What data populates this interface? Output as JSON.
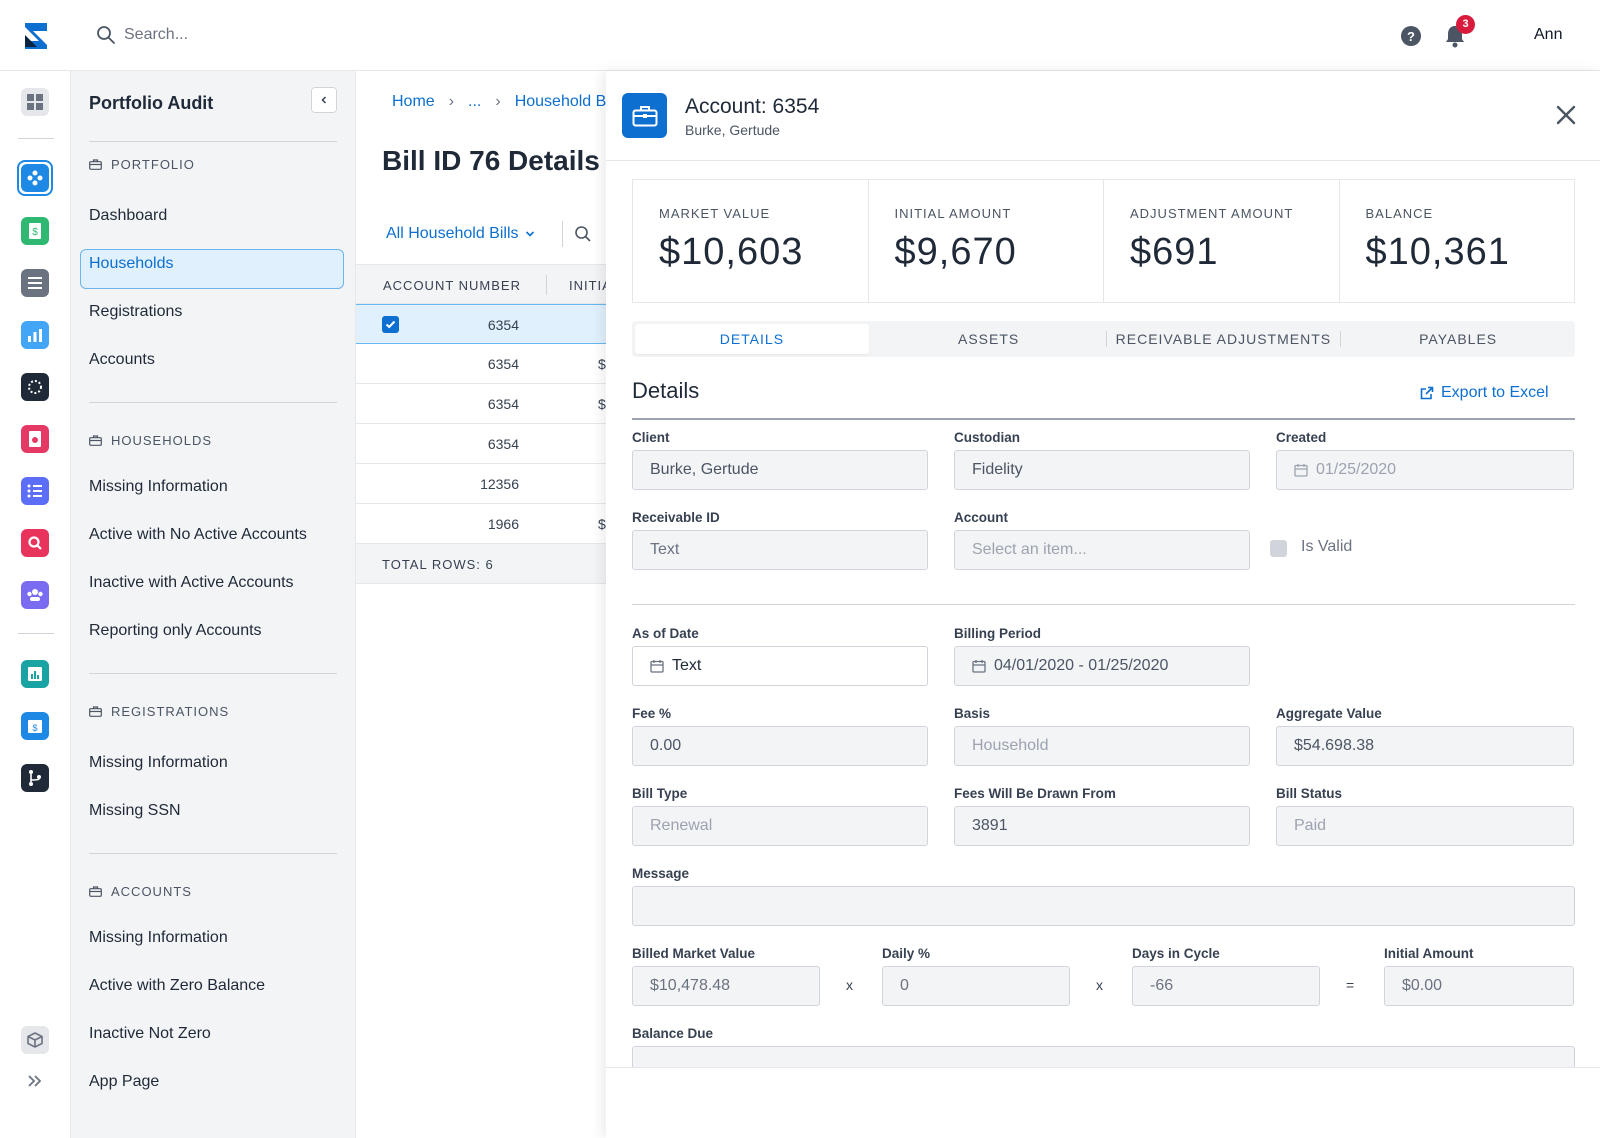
{
  "topbar": {
    "search_placeholder": "Search...",
    "notification_count": "3",
    "user_name": "Ann"
  },
  "sidebar": {
    "title": "Portfolio Audit",
    "sections": [
      {
        "label": "PORTFOLIO",
        "items": [
          "Dashboard",
          "Households",
          "Registrations",
          "Accounts"
        ]
      },
      {
        "label": "HOUSEHOLDS",
        "items": [
          "Missing Information",
          "Active with No Active Accounts",
          "Inactive with Active Accounts",
          "Reporting only Accounts"
        ]
      },
      {
        "label": "REGISTRATIONS",
        "items": [
          "Missing Information",
          "Missing SSN"
        ]
      },
      {
        "label": "ACCOUNTS",
        "items": [
          "Missing Information",
          "Active with Zero Balance",
          "Inactive Not Zero",
          "App Page"
        ]
      }
    ],
    "active_item": "Households"
  },
  "main": {
    "breadcrumb": [
      "Home",
      "...",
      "Household Bills"
    ],
    "title": "Bill ID 76 Details",
    "filter_label": "All Household Bills",
    "columns": [
      "ACCOUNT NUMBER",
      "INITIAL AMOUNT"
    ],
    "rows": [
      {
        "account": "6354",
        "initial": "",
        "selected": true
      },
      {
        "account": "6354",
        "initial": "$"
      },
      {
        "account": "6354",
        "initial": "$"
      },
      {
        "account": "6354",
        "initial": ""
      },
      {
        "account": "12356",
        "initial": ""
      },
      {
        "account": "1966",
        "initial": "$"
      }
    ],
    "total_rows": "TOTAL ROWS: 6"
  },
  "panel": {
    "title": "Account: 6354",
    "subtitle": "Burke, Gertude",
    "stats": [
      {
        "label": "MARKET VALUE",
        "value": "$10,603"
      },
      {
        "label": "INITIAL AMOUNT",
        "value": "$9,670"
      },
      {
        "label": "ADJUSTMENT AMOUNT",
        "value": "$691"
      },
      {
        "label": "BALANCE",
        "value": "$10,361"
      }
    ],
    "tabs": [
      "DETAILS",
      "ASSETS",
      "RECEIVABLE ADJUSTMENTS",
      "PAYABLES"
    ],
    "active_tab": "DETAILS",
    "section_title": "Details",
    "export_label": "Export to Excel",
    "fields": {
      "client": {
        "label": "Client",
        "value": "Burke, Gertude"
      },
      "custodian": {
        "label": "Custodian",
        "value": "Fidelity"
      },
      "created": {
        "label": "Created",
        "value": "01/25/2020"
      },
      "receivable_id": {
        "label": "Receivable ID",
        "placeholder": "Text"
      },
      "account": {
        "label": "Account",
        "placeholder": "Select an item..."
      },
      "is_valid": {
        "label": "Is Valid",
        "checked": false
      },
      "as_of_date": {
        "label": "As of Date",
        "placeholder": "Text"
      },
      "billing_period": {
        "label": "Billing Period",
        "value": "04/01/2020 - 01/25/2020"
      },
      "fee_pct": {
        "label": "Fee %",
        "value": "0.00"
      },
      "basis": {
        "label": "Basis",
        "value": "Household"
      },
      "aggregate_value": {
        "label": "Aggregate Value",
        "value": "$54.698.38"
      },
      "bill_type": {
        "label": "Bill Type",
        "value": "Renewal"
      },
      "fees_drawn_from": {
        "label": "Fees Will Be Drawn From",
        "value": "3891"
      },
      "bill_status": {
        "label": "Bill Status",
        "value": "Paid"
      },
      "message": {
        "label": "Message",
        "value": ""
      },
      "billed_market_value": {
        "label": "Billed Market Value",
        "value": "$10,478.48"
      },
      "daily_pct": {
        "label": "Daily %",
        "value": "0"
      },
      "days_in_cycle": {
        "label": "Days in Cycle",
        "value": "-66"
      },
      "initial_amount": {
        "label": "Initial Amount",
        "value": "$0.00"
      },
      "balance_due": {
        "label": "Balance Due",
        "value": ""
      }
    },
    "operators": {
      "times": "x",
      "equals": "="
    }
  },
  "colors": {
    "accent": "#0d6fd0",
    "badge": "#d81b3c"
  }
}
